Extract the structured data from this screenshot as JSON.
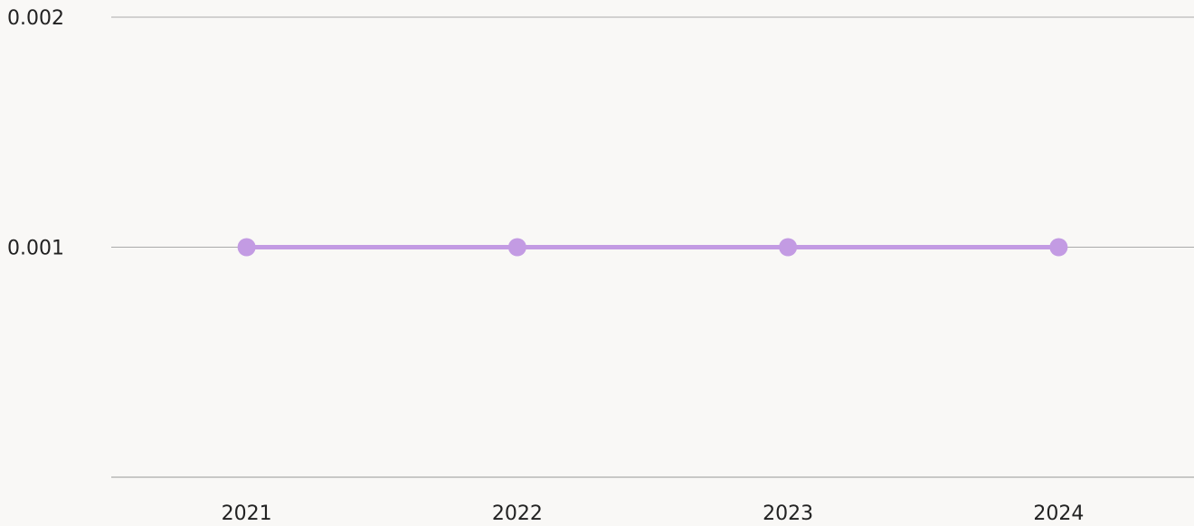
{
  "chart_data": {
    "type": "line",
    "categories": [
      "2021",
      "2022",
      "2023",
      "2024"
    ],
    "series": [
      {
        "color": "#c39be3",
        "values": [
          0.001,
          0.001,
          0.001,
          0.001
        ]
      }
    ],
    "ylim": [
      0,
      0.002
    ],
    "yticks": [
      0.001,
      0.002
    ],
    "grid": true
  }
}
